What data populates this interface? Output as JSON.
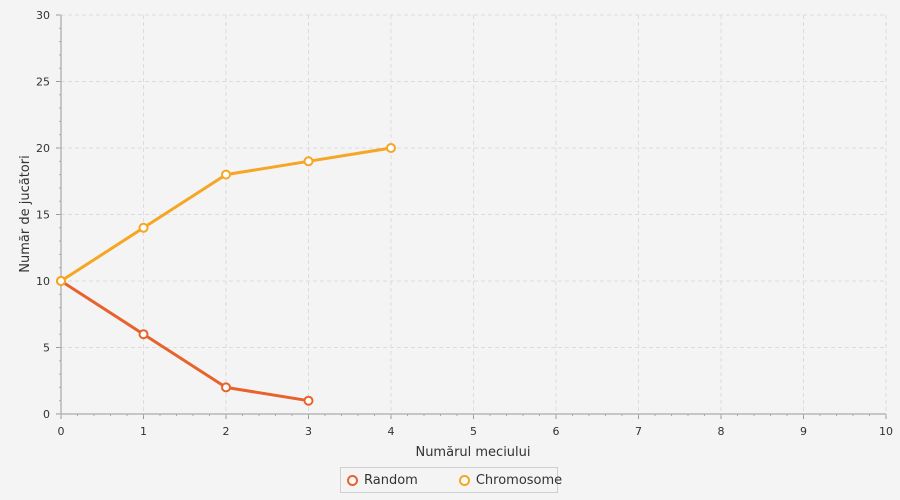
{
  "chart_data": {
    "type": "line",
    "title": "",
    "xlabel": "Numărul meciului",
    "ylabel": "Număr de jucători",
    "xlim": [
      0,
      10
    ],
    "ylim": [
      0,
      30
    ],
    "x_ticks": [
      "0",
      "1",
      "2",
      "3",
      "4",
      "5",
      "6",
      "7",
      "8",
      "9",
      "10"
    ],
    "y_ticks": [
      "0",
      "5",
      "10",
      "15",
      "20",
      "25",
      "30"
    ],
    "grid": true,
    "legend_position": "bottom-center",
    "series": [
      {
        "name": "Random",
        "color": "#e8622c",
        "x": [
          0,
          1,
          2,
          3
        ],
        "y": [
          10,
          6,
          2,
          1
        ]
      },
      {
        "name": "Chromosome",
        "color": "#f5a623",
        "x": [
          0,
          1,
          2,
          3,
          4
        ],
        "y": [
          10,
          14,
          18,
          19,
          20
        ]
      }
    ]
  }
}
